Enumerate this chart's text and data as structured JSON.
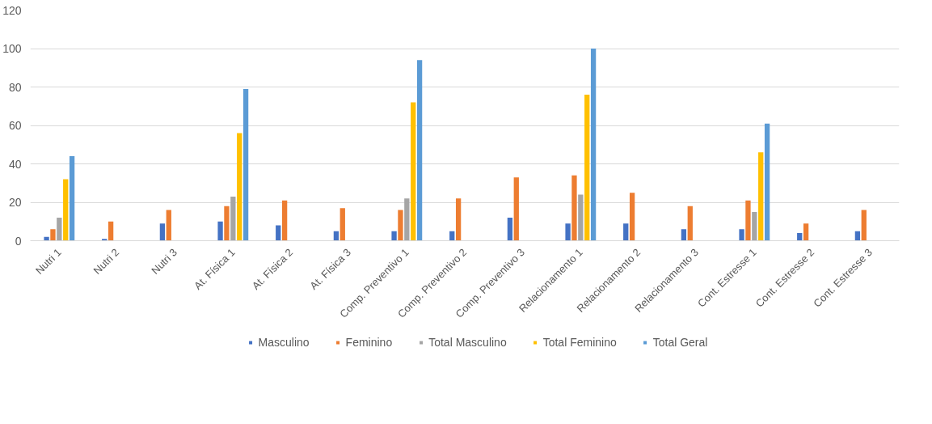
{
  "chart_data": {
    "type": "bar",
    "categories": [
      "Nutri 1",
      "Nutri 2",
      "Nutri 3",
      "At. Física 1",
      "At. Física 2",
      "At. Física 3",
      "Comp. Preventivo 1",
      "Comp. Preventivo 2",
      "Comp. Preventivo 3",
      "Relacionamento 1",
      "Relacionamento 2",
      "Relacionamento 3",
      "Cont. Estresse 1",
      "Cont. Estresse 2",
      "Cont. Estresse 3"
    ],
    "series": [
      {
        "name": "Masculino",
        "color": "#4472c4",
        "values": [
          2,
          1,
          9,
          10,
          8,
          5,
          5,
          5,
          12,
          9,
          9,
          6,
          6,
          4,
          5
        ]
      },
      {
        "name": "Feminino",
        "color": "#ed7d31",
        "values": [
          6,
          10,
          16,
          18,
          21,
          17,
          16,
          22,
          33,
          34,
          25,
          18,
          21,
          9,
          16
        ]
      },
      {
        "name": "Total Masculino",
        "color": "#a5a5a5",
        "values": [
          12,
          null,
          null,
          23,
          null,
          null,
          22,
          null,
          null,
          24,
          null,
          null,
          15,
          null,
          null
        ]
      },
      {
        "name": "Total Feminino",
        "color": "#ffc000",
        "values": [
          32,
          null,
          null,
          56,
          null,
          null,
          72,
          null,
          null,
          76,
          null,
          null,
          46,
          null,
          null
        ]
      },
      {
        "name": "Total Geral",
        "color": "#5b9bd5",
        "values": [
          44,
          null,
          null,
          79,
          null,
          null,
          94,
          null,
          null,
          100,
          null,
          null,
          61,
          null,
          null
        ]
      }
    ],
    "ylim": [
      0,
      120
    ],
    "yticks": [
      0,
      20,
      40,
      60,
      80,
      100,
      120
    ],
    "grid": "y",
    "legend": "bottom"
  }
}
